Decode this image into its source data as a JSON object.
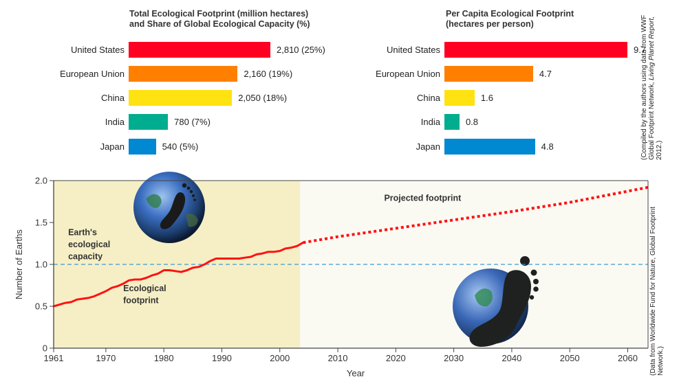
{
  "colors": {
    "united_states": "#ff0022",
    "european_union": "#ff7f00",
    "china": "#ffe211",
    "india": "#00ad8e",
    "japan": "#0088d2",
    "footprint_line": "#ff1111",
    "capacity_line": "#3d9ad1",
    "historical_bg": "#f6efc6",
    "projected_bg": "#fafaf3"
  },
  "chart_data": [
    {
      "type": "bar",
      "orientation": "horizontal",
      "title": "Total Ecological Footprint (million hectares)\nand Share of Global Ecological Capacity (%)",
      "categories": [
        "United States",
        "European Union",
        "China",
        "India",
        "Japan"
      ],
      "values": [
        2810,
        2160,
        2050,
        780,
        540
      ],
      "shares_percent": [
        25,
        19,
        18,
        7,
        5
      ],
      "data_labels": [
        "2,810 (25%)",
        "2,160 (19%)",
        "2,050 (18%)",
        "780 (7%)",
        "540 (5%)"
      ],
      "xlim": [
        0,
        2810
      ]
    },
    {
      "type": "bar",
      "orientation": "horizontal",
      "title": "Per Capita Ecological Footprint\n(hectares per person)",
      "categories": [
        "United States",
        "European Union",
        "China",
        "India",
        "Japan"
      ],
      "values": [
        9.7,
        4.7,
        1.6,
        0.8,
        4.8
      ],
      "data_labels": [
        "9.7",
        "4.7",
        "1.6",
        "0.8",
        "4.8"
      ],
      "xlim": [
        0,
        9.7
      ]
    },
    {
      "type": "line",
      "title": "",
      "xlabel": "Year",
      "ylabel": "Number of Earths",
      "xlim": [
        1961,
        2063.5
      ],
      "ylim": [
        0,
        2.0
      ],
      "x_ticks": [
        1961,
        1970,
        1980,
        1990,
        2000,
        2010,
        2020,
        2030,
        2040,
        2050,
        2060
      ],
      "y_ticks": [
        0,
        0.5,
        1.0,
        1.5,
        2.0
      ],
      "y_tick_labels": [
        "0",
        "0.5",
        "1.0",
        "1.5",
        "2.0"
      ],
      "historical_end_year": 2003.5,
      "grid": false,
      "series": [
        {
          "name": "Ecological footprint",
          "style": "solid",
          "x": [
            1961,
            1962,
            1963,
            1964,
            1965,
            1966,
            1967,
            1968,
            1969,
            1970,
            1971,
            1972,
            1973,
            1974,
            1975,
            1976,
            1977,
            1978,
            1979,
            1980,
            1981,
            1982,
            1983,
            1984,
            1985,
            1986,
            1987,
            1988,
            1989,
            1990,
            1991,
            1992,
            1993,
            1994,
            1995,
            1996,
            1997,
            1998,
            1999,
            2000,
            2001,
            2002,
            2003,
            2004
          ],
          "y": [
            0.5,
            0.52,
            0.54,
            0.55,
            0.58,
            0.59,
            0.6,
            0.62,
            0.65,
            0.68,
            0.72,
            0.74,
            0.77,
            0.81,
            0.82,
            0.82,
            0.84,
            0.87,
            0.89,
            0.93,
            0.93,
            0.92,
            0.91,
            0.93,
            0.96,
            0.97,
            1.0,
            1.04,
            1.07,
            1.07,
            1.07,
            1.07,
            1.07,
            1.08,
            1.09,
            1.12,
            1.13,
            1.15,
            1.15,
            1.16,
            1.19,
            1.2,
            1.22,
            1.26
          ]
        },
        {
          "name": "Projected footprint",
          "style": "dotted",
          "x": [
            2004,
            2010,
            2020,
            2030,
            2040,
            2050,
            2063.5
          ],
          "y": [
            1.26,
            1.33,
            1.43,
            1.53,
            1.63,
            1.74,
            1.92
          ]
        },
        {
          "name": "Earth's ecological capacity",
          "style": "dashed",
          "x": [
            1961,
            2063.5
          ],
          "y": [
            1.0,
            1.0
          ]
        }
      ],
      "annotations": [
        {
          "text": "Earth's\necological\ncapacity",
          "x": 1963.5,
          "y": 1.35
        },
        {
          "text": "Ecological\nfootprint",
          "x": 1973,
          "y": 0.68
        },
        {
          "text": "Projected footprint",
          "x": 2018,
          "y": 1.76
        }
      ],
      "images": [
        "earth-globe-with-footprint",
        "giant-footprint-over-earth"
      ]
    }
  ],
  "sources": {
    "top": {
      "prefix": "(Compiled by the authors using data from WWF",
      "line2_prefix": "Global Footprint Network, ",
      "line2_italic": "Living Planet Report,",
      "line3": "2012.)"
    },
    "bottom": {
      "line1": "(Data from Worldwide Fund for Nature, Global Footprint",
      "line2": "Network.)"
    }
  }
}
